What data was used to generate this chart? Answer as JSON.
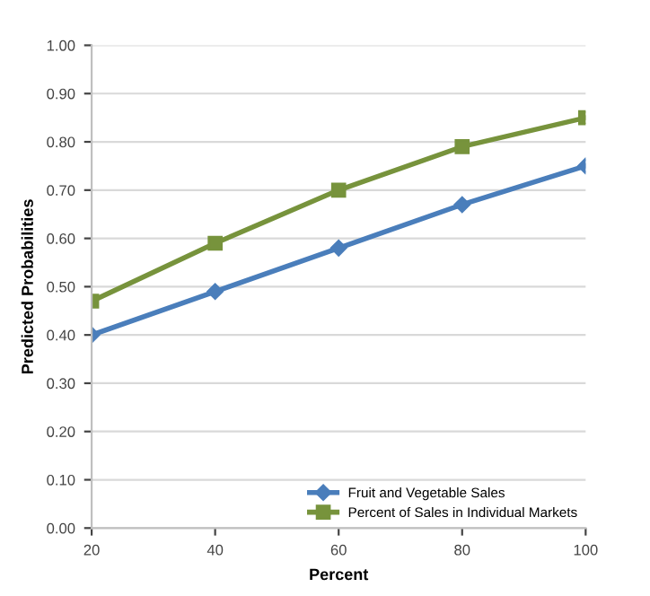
{
  "chart_data": {
    "type": "line",
    "xlabel": "Percent",
    "ylabel": "Predicted Probabilities",
    "x": [
      20,
      40,
      60,
      80,
      100
    ],
    "series": [
      {
        "name": "Fruit and Vegetable Sales",
        "color": "#4a7ebb",
        "marker": "diamond",
        "values": [
          0.4,
          0.49,
          0.58,
          0.67,
          0.75
        ]
      },
      {
        "name": "Percent of Sales in Individual Markets",
        "color": "#77933c",
        "marker": "square",
        "values": [
          0.47,
          0.59,
          0.7,
          0.79,
          0.85
        ]
      }
    ],
    "xlim": [
      20,
      100
    ],
    "xticks": [
      20,
      40,
      60,
      80,
      100
    ],
    "ylim": [
      0,
      1
    ],
    "yticks": [
      {
        "value": 0,
        "label": "0.00"
      },
      {
        "value": 0.1,
        "label": "0.10"
      },
      {
        "value": 0.2,
        "label": "0.20"
      },
      {
        "value": 0.3,
        "label": "0.30"
      },
      {
        "value": 0.4,
        "label": "0.40"
      },
      {
        "value": 0.5,
        "label": "0.50"
      },
      {
        "value": 0.6,
        "label": "0.60"
      },
      {
        "value": 0.7,
        "label": "0.70"
      },
      {
        "value": 0.8,
        "label": "0.80"
      },
      {
        "value": 0.9,
        "label": "0.90"
      },
      {
        "value": 1,
        "label": "1.00"
      }
    ],
    "grid": "y",
    "legend": "bottom right",
    "line_style": "solid"
  }
}
